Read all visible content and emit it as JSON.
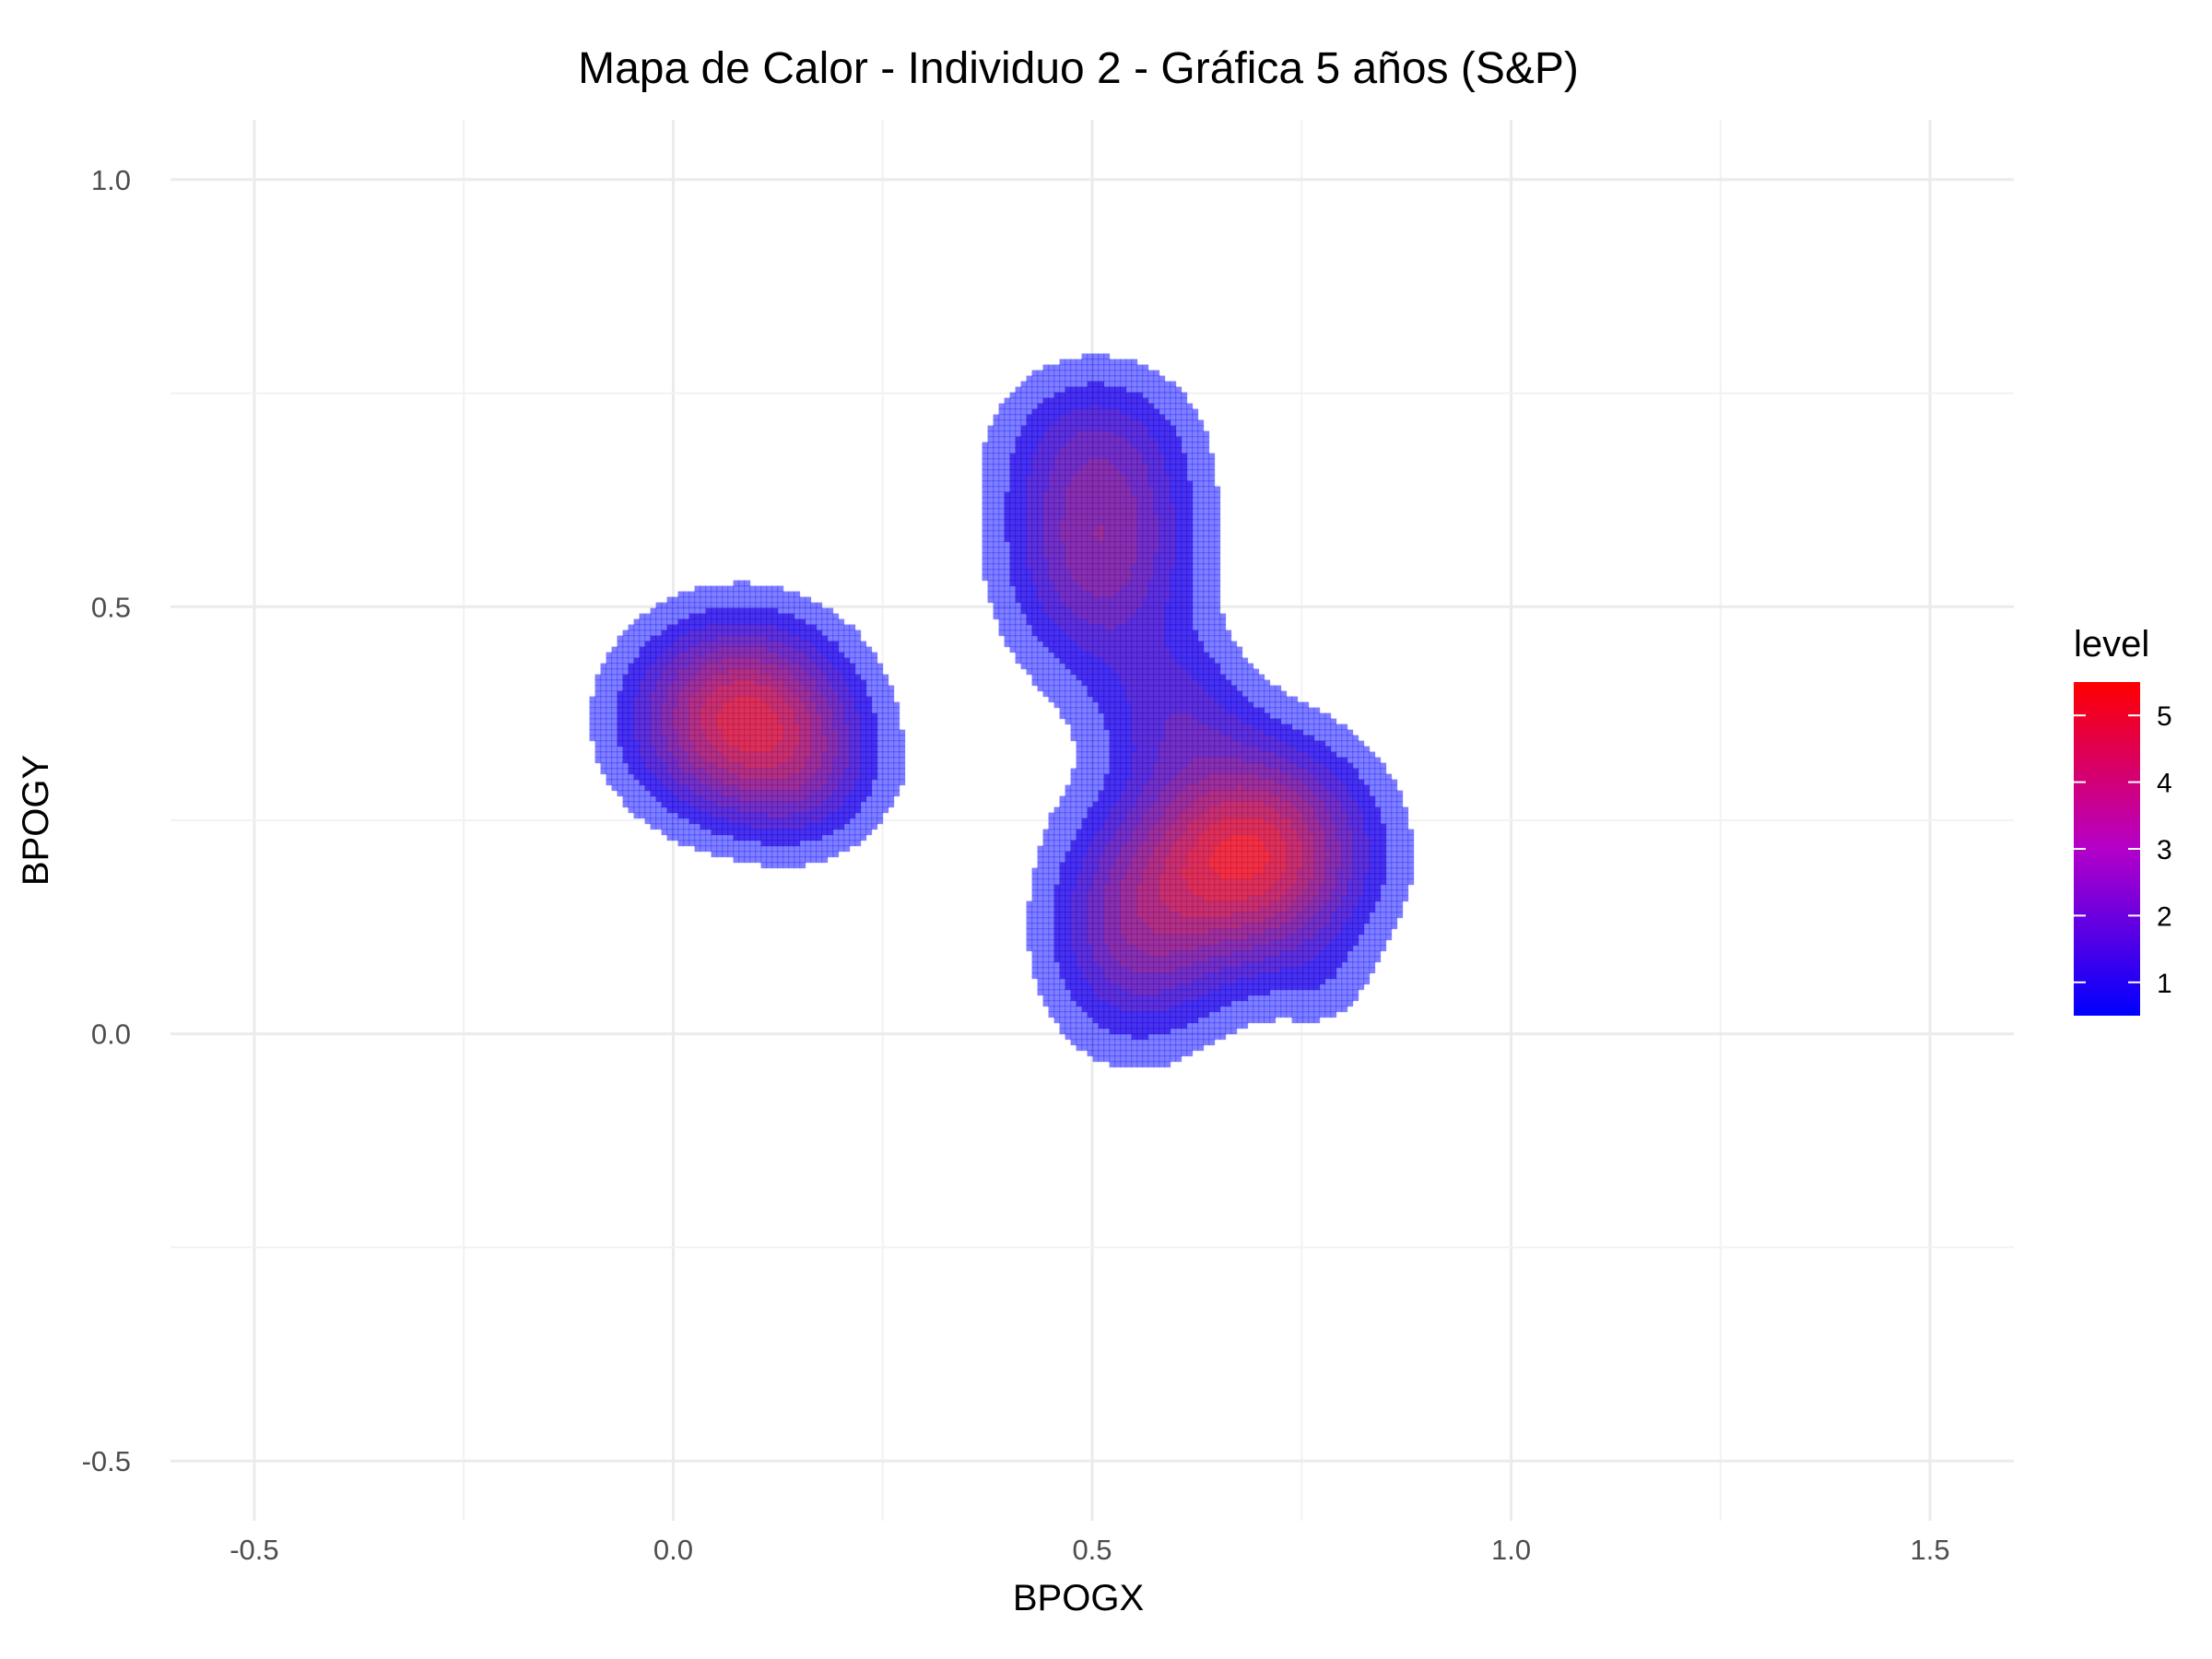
{
  "chart_data": {
    "type": "heatmap",
    "subtype": "2d-density-contour",
    "title": "Mapa de Calor - Individuo 2 - Gráfica 5 años (S&P)",
    "xlabel": "BPOGX",
    "ylabel": "BPOGY",
    "xlim": [
      -0.6,
      1.6
    ],
    "ylim": [
      -0.57,
      1.07
    ],
    "x_ticks": [
      -0.5,
      0.0,
      0.5,
      1.0,
      1.5
    ],
    "x_tick_labels": [
      "-0.5",
      "0.0",
      "0.5",
      "1.0",
      "1.5"
    ],
    "y_ticks": [
      -0.5,
      0.0,
      0.5,
      1.0
    ],
    "y_tick_labels": [
      "-0.5",
      "0.0",
      "0.5",
      "1.0"
    ],
    "grid": true,
    "legend": {
      "title": "level",
      "position": "right",
      "ticks": [
        1,
        2,
        3,
        4,
        5
      ],
      "tick_labels": [
        "1",
        "2",
        "3",
        "4",
        "5"
      ],
      "range": [
        0.5,
        5.5
      ],
      "color_low": "#0000FF",
      "color_high": "#FF0000"
    },
    "peaks": [
      {
        "x": 0.08,
        "y": 0.37,
        "level": 5.0
      },
      {
        "x": 0.51,
        "y": 0.57,
        "level": 3.0
      },
      {
        "x": 0.69,
        "y": 0.21,
        "level": 5.5
      }
    ]
  }
}
